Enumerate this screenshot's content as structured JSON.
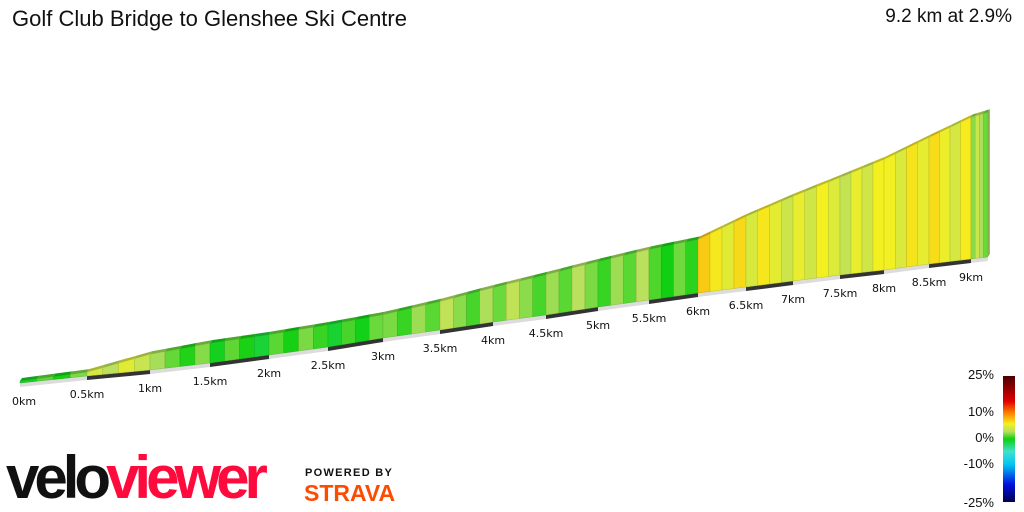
{
  "header": {
    "title": "Golf Club Bridge to Glenshee Ski Centre",
    "summary": "9.2 km at 2.9%"
  },
  "chart_data": {
    "type": "area",
    "title": "Golf Club Bridge to Glenshee Ski Centre",
    "subtitle": "9.2 km at 2.9%",
    "distance_km": 9.2,
    "average_gradient_pct": 2.9,
    "x_ticks": [
      "0km",
      "0.5km",
      "1km",
      "1.5km",
      "2km",
      "2.5km",
      "3km",
      "3.5km",
      "4km",
      "4.5km",
      "5km",
      "5.5km",
      "6km",
      "6.5km",
      "7km",
      "7.5km",
      "8km",
      "8.5km",
      "9km"
    ],
    "segments_km": [
      0,
      0.5,
      1,
      1.5,
      2,
      2.5,
      3,
      3.5,
      4,
      4.5,
      5,
      5.5,
      6,
      6.5,
      7,
      7.5,
      8,
      8.5,
      9,
      9.2
    ],
    "segment_gradients_pct": [
      0.7,
      4.4,
      1.5,
      0.2,
      0.7,
      0.4,
      1.9,
      2.2,
      2.2,
      1.9,
      1.9,
      1.1,
      6.3,
      5.2,
      4.8,
      4.8,
      5.9,
      5.6,
      2.8
    ],
    "color_scale": {
      "labels": [
        "25%",
        "10%",
        "0%",
        "-10%",
        "-25%"
      ],
      "stops": [
        {
          "pct": 25,
          "color": "#4a0000"
        },
        {
          "pct": 15,
          "color": "#e00000"
        },
        {
          "pct": 10,
          "color": "#ff8a00"
        },
        {
          "pct": 6,
          "color": "#f4f020"
        },
        {
          "pct": 3,
          "color": "#b8e060"
        },
        {
          "pct": 0,
          "color": "#10d010"
        },
        {
          "pct": -5,
          "color": "#40e0d0"
        },
        {
          "pct": -10,
          "color": "#00c8f0"
        },
        {
          "pct": -18,
          "color": "#0010e0"
        },
        {
          "pct": -25,
          "color": "#000050"
        }
      ]
    }
  },
  "branding": {
    "logo_part1": "velo",
    "logo_part2": "viewer",
    "powered_by": "POWERED BY",
    "strava": "STRAVA"
  }
}
